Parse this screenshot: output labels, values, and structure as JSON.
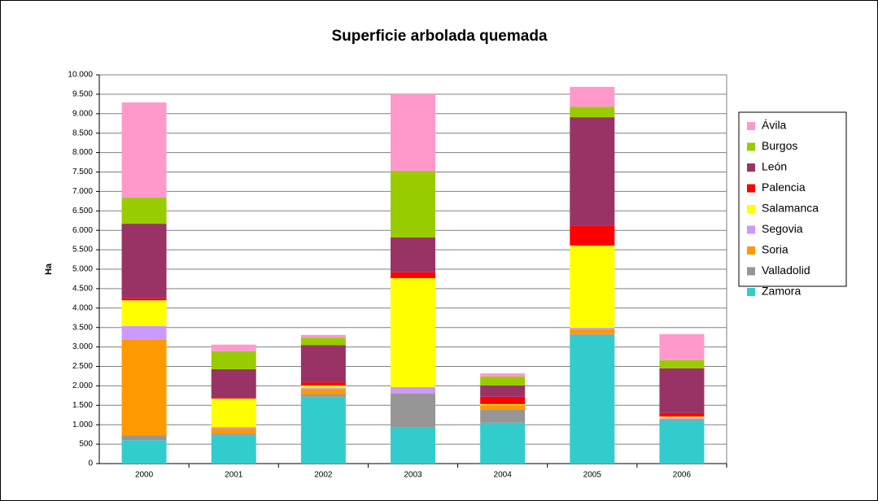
{
  "chart_data": {
    "type": "stacked_bar",
    "title": "Superficie arbolada quemada",
    "y_label": "Ha",
    "categories": [
      "2000",
      "2001",
      "2002",
      "2003",
      "2004",
      "2005",
      "2006"
    ],
    "series": [
      {
        "name": "Zamora",
        "color": "#33cccc",
        "values": [
          600,
          730,
          1720,
          940,
          1050,
          3310,
          1110
        ]
      },
      {
        "name": "Valladolid",
        "color": "#969696",
        "values": [
          130,
          40,
          60,
          860,
          330,
          20,
          20
        ]
      },
      {
        "name": "Soria",
        "color": "#ff9900",
        "values": [
          2450,
          130,
          140,
          10,
          110,
          120,
          20
        ]
      },
      {
        "name": "Segovia",
        "color": "#cc99ff",
        "values": [
          360,
          40,
          30,
          160,
          20,
          40,
          20
        ]
      },
      {
        "name": "Salamanca",
        "color": "#ffff00",
        "values": [
          660,
          730,
          60,
          2800,
          20,
          2120,
          40
        ]
      },
      {
        "name": "Palencia",
        "color": "#ff0000",
        "values": [
          50,
          20,
          80,
          150,
          190,
          500,
          90
        ]
      },
      {
        "name": "León",
        "color": "#993366",
        "values": [
          1920,
          740,
          960,
          900,
          290,
          2800,
          1150
        ]
      },
      {
        "name": "Burgos",
        "color": "#99cc00",
        "values": [
          670,
          460,
          190,
          1710,
          230,
          270,
          210
        ]
      },
      {
        "name": "Ávila",
        "color": "#ff99cc",
        "values": [
          2450,
          170,
          70,
          1970,
          80,
          510,
          670
        ]
      }
    ],
    "ylim": [
      0,
      10000
    ],
    "yticks": [
      0,
      500,
      {
        "value": 1000,
        "label": "1.000"
      },
      {
        "value": 1500,
        "label": "1.500"
      },
      {
        "value": 2000,
        "label": "2.000"
      },
      {
        "value": 2500,
        "label": "2.500"
      },
      {
        "value": 3000,
        "label": "3.000"
      },
      {
        "value": 3500,
        "label": "3.500"
      },
      {
        "value": 4000,
        "label": "4.000"
      },
      {
        "value": 4500,
        "label": "4.500"
      },
      {
        "value": 5000,
        "label": "5.000"
      },
      {
        "value": 5500,
        "label": "5.500"
      },
      {
        "value": 6000,
        "label": "6.000"
      },
      {
        "value": 6500,
        "label": "6.500"
      },
      {
        "value": 7000,
        "label": "7.000"
      },
      {
        "value": 7500,
        "label": "7.500"
      },
      {
        "value": 8000,
        "label": "8.000"
      },
      {
        "value": 8500,
        "label": "8.500"
      },
      {
        "value": 9000,
        "label": "9.000"
      },
      {
        "value": 9500,
        "label": "9.500"
      },
      {
        "value": 10000,
        "label": "10.000"
      }
    ],
    "grid": true,
    "legend": "right"
  }
}
